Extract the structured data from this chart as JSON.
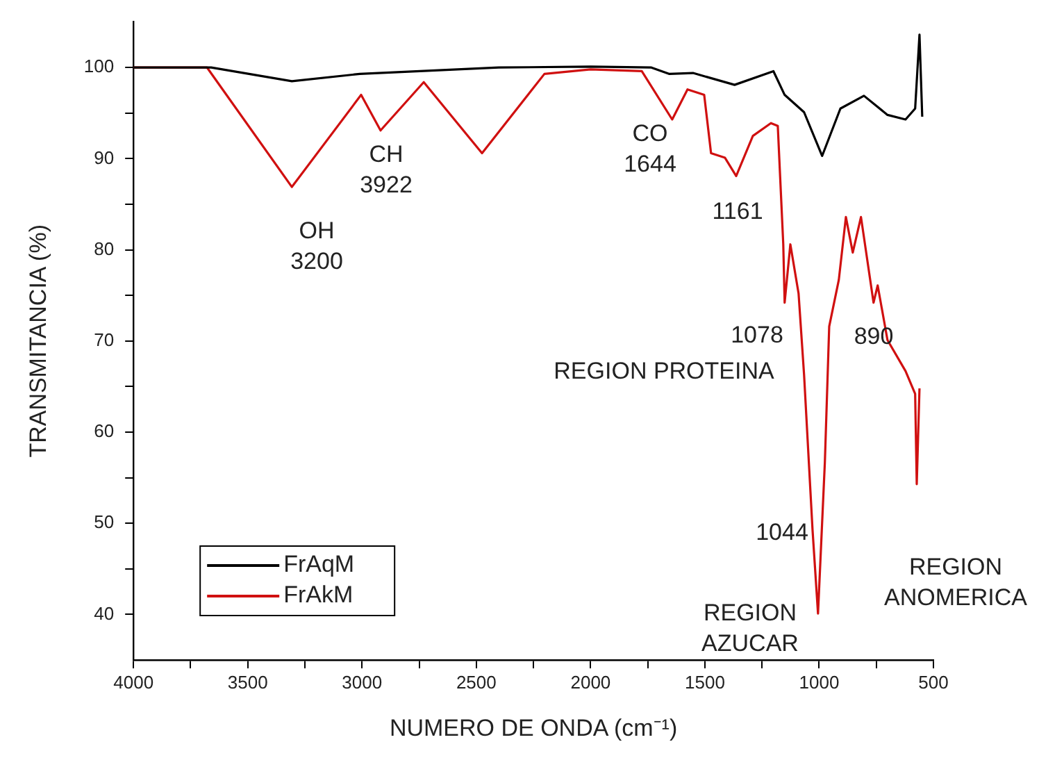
{
  "chart_data": {
    "type": "line",
    "xlabel": "NUMERO DE ONDA (cm⁻¹)",
    "ylabel": "TRANSMITANCIA (%)",
    "xlim": [
      4000,
      500
    ],
    "ylim": [
      35,
      105
    ],
    "xticks": [
      4000,
      {
        "value": 3750,
        "label": null
      },
      3500,
      {
        "value": 3250,
        "label": null
      },
      3000,
      {
        "value": 2750,
        "label": null
      },
      2500,
      {
        "value": 2250,
        "label": null
      },
      2000,
      {
        "value": 1750,
        "label": null
      },
      1500,
      {
        "value": 1250,
        "label": null
      },
      1000,
      {
        "value": 750,
        "label": null
      },
      500
    ],
    "yticks": [
      40,
      {
        "value": 45,
        "label": null
      },
      50,
      {
        "value": 55,
        "label": null
      },
      60,
      {
        "value": 65,
        "label": null
      },
      70,
      {
        "value": 75,
        "label": null
      },
      80,
      {
        "value": 85,
        "label": null
      },
      90,
      {
        "value": 95,
        "label": null
      },
      100
    ],
    "grid": false,
    "legend": "bottom left",
    "series": [
      {
        "name": "FrAqM",
        "color": "#000000",
        "x": [
          4000,
          3660,
          3307,
          3010,
          2402,
          2000,
          1734,
          1655,
          1552,
          1370,
          1200,
          1151,
          1066,
          987,
          907,
          804,
          701,
          622,
          580,
          561,
          549
        ],
        "values": [
          100,
          100,
          98.5,
          99.3,
          100,
          100.1,
          100,
          99.3,
          99.4,
          98.1,
          99.6,
          97.0,
          95.1,
          90.3,
          95.5,
          96.9,
          94.8,
          94.3,
          95.5,
          103.6,
          94.6
        ]
      },
      {
        "name": "FrAkM",
        "color": "#d01010",
        "x": [
          4000,
          3678,
          3307,
          3004,
          2919,
          2730,
          2475,
          2202,
          2000,
          1776,
          1643,
          1576,
          1503,
          1473,
          1412,
          1363,
          1290,
          1211,
          1181,
          1157,
          1151,
          1126,
          1090,
          1066,
          1029,
          1005,
          975,
          956,
          914,
          883,
          853,
          817,
          762,
          744,
          701,
          622,
          580,
          573,
          561
        ],
        "values": [
          100,
          100,
          86.9,
          97.0,
          93.1,
          98.4,
          90.6,
          99.3,
          99.8,
          99.6,
          94.3,
          97.6,
          97.0,
          90.6,
          90.1,
          88.1,
          92.5,
          93.9,
          93.6,
          80.6,
          74.2,
          80.6,
          75.2,
          66.3,
          49.3,
          40.1,
          56.7,
          71.6,
          76.7,
          83.6,
          79.7,
          83.6,
          74.2,
          76.1,
          70.1,
          66.7,
          64.2,
          54.3,
          64.8
        ]
      }
    ],
    "annotations": [
      "OH\n3200",
      "CH\n3922",
      "CO\n1644",
      "1161",
      "1078",
      "890",
      "REGION PROTEINA",
      "1044",
      "REGION\nAZUCAR",
      "REGION\nANOMERICA"
    ]
  }
}
